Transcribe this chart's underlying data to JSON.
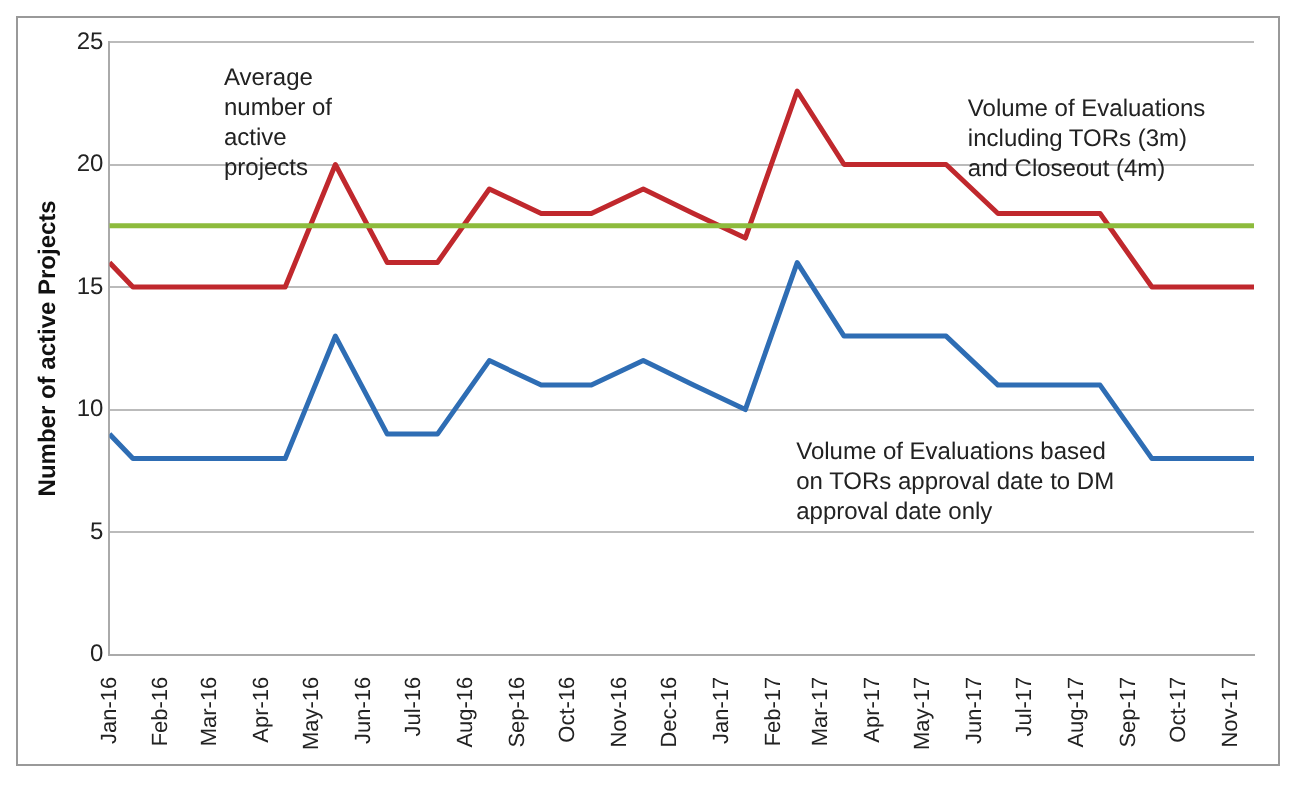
{
  "chart_data": {
    "type": "line",
    "ylabel": "Number of active Projects",
    "x": [
      "2016-01-01",
      "2016-01-15",
      "2016-02-15",
      "2016-03-15",
      "2016-04-15",
      "2016-05-15",
      "2016-06-15",
      "2016-07-15",
      "2016-08-15",
      "2016-09-15",
      "2016-10-15",
      "2016-11-15",
      "2016-12-15",
      "2017-01-15",
      "2017-02-15",
      "2017-03-15",
      "2017-04-15",
      "2017-05-15",
      "2017-06-15",
      "2017-07-15",
      "2017-08-15",
      "2017-09-15",
      "2017-10-15",
      "2017-11-15"
    ],
    "series": [
      {
        "name": "Volume of Evaluations including TORs (3m) and Closeout (4m)",
        "color": "#c0282d",
        "values": [
          16,
          15,
          15,
          15,
          15,
          20,
          16,
          16,
          19,
          18,
          18,
          19,
          18,
          17,
          23,
          20,
          20,
          20,
          18,
          18,
          18,
          15,
          15,
          15
        ]
      },
      {
        "name": "Volume of Evaluations based on TORs approval date to DM approval date only",
        "color": "#2e6db4",
        "values": [
          9,
          8,
          8,
          8,
          8,
          13,
          9,
          9,
          12,
          11,
          11,
          12,
          11,
          10,
          16,
          13,
          13,
          13,
          11,
          11,
          11,
          8,
          8,
          8
        ]
      }
    ],
    "ref_lines": [
      {
        "axis": "y",
        "value": 17.5,
        "label": "Average number of active projects",
        "color": "#8dbb3c"
      }
    ],
    "xlim": [
      "2016-01-01",
      "2017-11-15"
    ],
    "xticks": [
      {
        "value": "2016-01-01",
        "label": "Jan-16"
      },
      {
        "value": "2016-02-01",
        "label": "Feb-16"
      },
      {
        "value": "2016-03-01",
        "label": "Mar-16"
      },
      {
        "value": "2016-04-01",
        "label": "Apr-16"
      },
      {
        "value": "2016-05-01",
        "label": "May-16"
      },
      {
        "value": "2016-06-01",
        "label": "Jun-16"
      },
      {
        "value": "2016-07-01",
        "label": "Jul-16"
      },
      {
        "value": "2016-08-01",
        "label": "Aug-16"
      },
      {
        "value": "2016-09-01",
        "label": "Sep-16"
      },
      {
        "value": "2016-10-01",
        "label": "Oct-16"
      },
      {
        "value": "2016-11-01",
        "label": "Nov-16"
      },
      {
        "value": "2016-12-01",
        "label": "Dec-16"
      },
      {
        "value": "2017-01-01",
        "label": "Jan-17"
      },
      {
        "value": "2017-02-01",
        "label": "Feb-17"
      },
      {
        "value": "2017-03-01",
        "label": "Mar-17"
      },
      {
        "value": "2017-04-01",
        "label": "Apr-17"
      },
      {
        "value": "2017-05-01",
        "label": "May-17"
      },
      {
        "value": "2017-06-01",
        "label": "Jun-17"
      },
      {
        "value": "2017-07-01",
        "label": "Jul-17"
      },
      {
        "value": "2017-08-01",
        "label": "Aug-17"
      },
      {
        "value": "2017-09-01",
        "label": "Sep-17"
      },
      {
        "value": "2017-10-01",
        "label": "Oct-17"
      },
      {
        "value": "2017-11-01",
        "label": "Nov-17"
      }
    ],
    "ylim": [
      0,
      25
    ],
    "yticks": [
      0,
      5,
      10,
      15,
      20,
      25
    ],
    "grid": "y",
    "legend": false,
    "marker": "none",
    "line_style": "solid"
  }
}
